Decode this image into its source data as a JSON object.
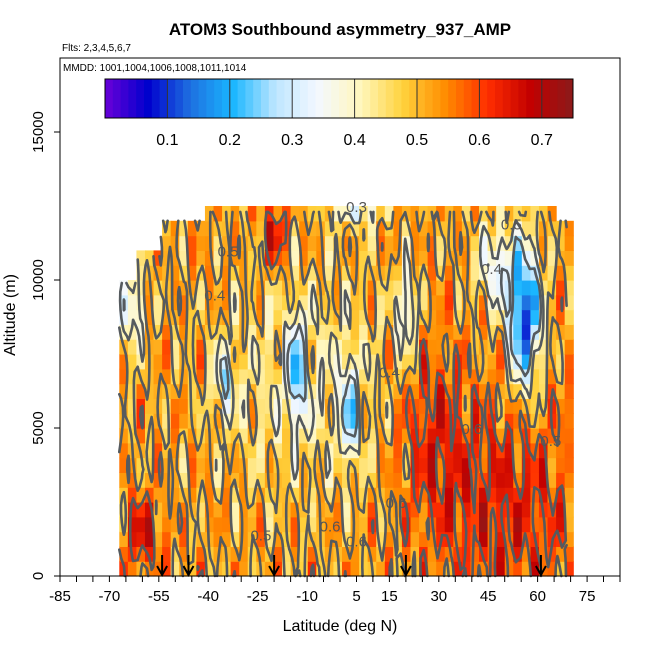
{
  "chart_data": {
    "type": "heatmap",
    "title": "ATOM3 Southbound asymmetry_937_AMP",
    "flights_note": "Flts: 2,3,4,5,6,7",
    "dates_note": "MMDD: 1001,1004,1006,1008,1011,1014",
    "xlabel": "Latitude (deg N)",
    "ylabel": "Altitude (m)",
    "xlim": [
      -85,
      85
    ],
    "ylim": [
      0,
      17500
    ],
    "x_ticks": [
      -85,
      -70,
      -55,
      -40,
      -25,
      -10,
      5,
      15,
      30,
      45,
      60,
      75
    ],
    "y_ticks": [
      0,
      5000,
      10000,
      15000
    ],
    "colorbar": {
      "range": [
        0.0,
        0.75
      ],
      "ticks": [
        0.1,
        0.2,
        0.3,
        0.4,
        0.5,
        0.6,
        0.7
      ],
      "colors": [
        "#6a00d8",
        "#0000cd",
        "#1e6fe0",
        "#19b6ff",
        "#bde6ff",
        "#f4f8ff",
        "#fff7bd",
        "#ffd23c",
        "#ff8c00",
        "#ff2d00",
        "#c20000",
        "#8b1a1a"
      ]
    },
    "data_extent": {
      "lat": [
        -67,
        70
      ],
      "alt": [
        0,
        12800
      ]
    },
    "profile_latitudes": [
      -54,
      -46,
      -20,
      20,
      61
    ],
    "contour_labels": [
      {
        "text": "0.3",
        "lat": 5,
        "alt": 12300
      },
      {
        "text": "0.5",
        "lat": 52,
        "alt": 11700
      },
      {
        "text": "0.5",
        "lat": -34,
        "alt": 10800
      },
      {
        "text": "0.4",
        "lat": -38,
        "alt": 9300
      },
      {
        "text": "0.4",
        "lat": 46,
        "alt": 10200
      },
      {
        "text": "0.4",
        "lat": 15,
        "alt": 6700
      },
      {
        "text": "0.6",
        "lat": 40,
        "alt": 4800
      },
      {
        "text": "0.5",
        "lat": 64,
        "alt": 4400
      },
      {
        "text": "0.6",
        "lat": 17,
        "alt": 2300
      },
      {
        "text": "0.6",
        "lat": -3,
        "alt": 1500
      },
      {
        "text": "0.6",
        "lat": 5,
        "alt": 1000
      },
      {
        "text": "0.5",
        "lat": -24,
        "alt": 1200
      }
    ],
    "grid": false,
    "legend": "colorbar top"
  }
}
